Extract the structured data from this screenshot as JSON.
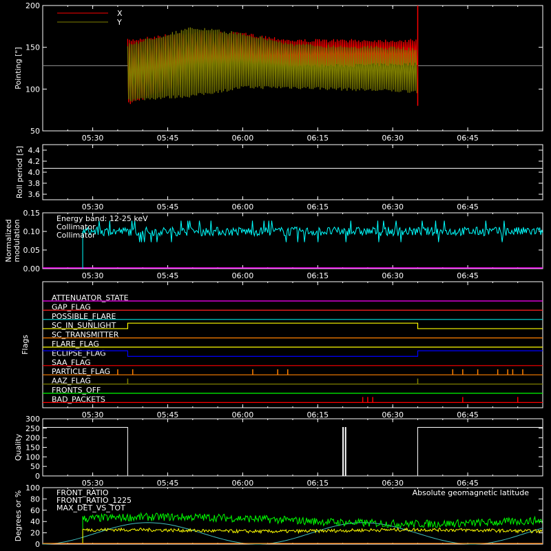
{
  "chart_data": [
    {
      "type": "line",
      "ylabel": "Pointing [\"]",
      "ylim": [
        50,
        200
      ],
      "yticks": [
        "50",
        "100",
        "150",
        "200"
      ],
      "xlim": [
        "05:20",
        "07:00"
      ],
      "xticks": [
        "05:30",
        "05:45",
        "06:00",
        "06:15",
        "06:30",
        "06:45"
      ],
      "series": [
        {
          "name": "X",
          "color": "#ff0000",
          "baseline": 128,
          "active_range": [
            "05:37",
            "06:35"
          ],
          "envelope": [
            [
              "05:37",
              80,
              160
            ],
            [
              "05:50",
              110,
              170
            ],
            [
              "06:00",
              115,
              168
            ],
            [
              "06:10",
              125,
              160
            ],
            [
              "06:35",
              128,
              160
            ]
          ]
        },
        {
          "name": "Y",
          "color": "#808000",
          "baseline": 128,
          "active_range": [
            "05:37",
            "06:35"
          ],
          "envelope": [
            [
              "05:37",
              85,
              155
            ],
            [
              "05:50",
              90,
              175
            ],
            [
              "06:00",
              100,
              168
            ],
            [
              "06:10",
              100,
              155
            ],
            [
              "06:35",
              95,
              150
            ]
          ]
        }
      ]
    },
    {
      "type": "line",
      "ylabel": "Roll period [s]",
      "ylim": [
        3.5,
        4.5
      ],
      "yticks": [
        "3.6",
        "3.8",
        "4.0",
        "4.2",
        "4.4"
      ],
      "xticks": [
        "05:30",
        "05:45",
        "06:00",
        "06:15",
        "06:30",
        "06:45"
      ],
      "series": [
        {
          "color": "#ffffff",
          "constant": 4.07
        }
      ]
    },
    {
      "type": "line",
      "ylabel": "Normalized modulation",
      "ylim": [
        0,
        0.15
      ],
      "yticks": [
        "0.00",
        "0.05",
        "0.10",
        "0.15"
      ],
      "xticks": [
        "05:30",
        "05:45",
        "06:00",
        "06:15",
        "06:30",
        "06:45"
      ],
      "annotation": "Energy band: 12-25 keV",
      "series": [
        {
          "name": "Collimator",
          "color": "#00ffff",
          "mean": 0.1,
          "spread": 0.012,
          "start": "05:28"
        },
        {
          "name": "Collimator",
          "color": "#ff00ff",
          "constant": 0.0
        }
      ]
    },
    {
      "type": "table",
      "ylabel": "Flags",
      "xticks": [
        "05:30",
        "05:45",
        "06:00",
        "06:15",
        "06:30",
        "06:45"
      ],
      "flags": [
        {
          "name": "ATTENUATOR_STATE",
          "color": "#ff00ff",
          "pulses": []
        },
        {
          "name": "GAP_FLAG",
          "color": "#ff2020",
          "pulses": []
        },
        {
          "name": "POSSIBLE_FLARE",
          "color": "#00e0e0",
          "pulses": []
        },
        {
          "name": "SC_IN_SUNLIGHT",
          "color": "#ffff00",
          "high_range": [
            "05:37",
            "06:35"
          ]
        },
        {
          "name": "SC_TRANSMITTER",
          "color": "#ff8000",
          "pulses": []
        },
        {
          "name": "FLARE_FLAG",
          "color": "#ffff00",
          "pulses": []
        },
        {
          "name": "ECLIPSE_FLAG",
          "color": "#0000ff",
          "high_ranges": [
            [
              "05:20",
              "05:37"
            ],
            [
              "06:35",
              "07:00"
            ]
          ]
        },
        {
          "name": "SAA_FLAG",
          "color": "#ff0000",
          "pulses": []
        },
        {
          "name": "PARTICLE_FLAG",
          "color": "#ff8000",
          "pulses": [
            "05:35",
            "05:38",
            "06:02",
            "06:07",
            "06:09",
            "06:42",
            "06:44",
            "06:47",
            "06:51",
            "06:53",
            "06:54",
            "06:56"
          ]
        },
        {
          "name": "AAZ_FLAG",
          "color": "#808000",
          "pulses": [
            "05:37",
            "06:35"
          ]
        },
        {
          "name": "FRONTS_OFF",
          "color": "#00ff00",
          "pulses": []
        },
        {
          "name": "BAD_PACKETS",
          "color": "#ff0000",
          "pulses": [
            "06:24",
            "06:25",
            "06:26",
            "06:44",
            "06:55"
          ]
        }
      ]
    },
    {
      "type": "line",
      "ylabel": "Quality",
      "ylim": [
        0,
        300
      ],
      "yticks": [
        "0",
        "50",
        "100",
        "150",
        "200",
        "250",
        "300"
      ],
      "xticks": [
        "05:30",
        "05:45",
        "06:00",
        "06:15",
        "06:30",
        "06:45"
      ],
      "series": [
        {
          "color": "#ffffff",
          "high_value": 255,
          "high_ranges": [
            [
              "05:20",
              "05:37"
            ],
            [
              "06:35",
              "07:00"
            ]
          ],
          "spikes": [
            "06:20",
            "06:20.5"
          ]
        }
      ]
    },
    {
      "type": "line",
      "ylabel": "Degrees or %",
      "ylim": [
        0,
        100
      ],
      "yticks": [
        "0",
        "20",
        "40",
        "60",
        "80",
        "100"
      ],
      "xlim": [
        "05:20",
        "07:00"
      ],
      "annotation": "Absolute geomagnetic latitude",
      "series": [
        {
          "name": "FRONT_RATIO",
          "color": "#ffff00",
          "mean": 24,
          "spread": 3,
          "start": "05:28"
        },
        {
          "name": "FRONT_RATIO_1225",
          "color": "#00ff00",
          "mean": 42,
          "spread": 7,
          "start": "05:28"
        },
        {
          "name": "MAX_DET_VS_TOT",
          "color": "#ff8000",
          "constant": 0
        },
        {
          "name": "Absolute geomagnetic latitude",
          "color": "#40c0c0",
          "wave": {
            "min": 0,
            "max": 38,
            "troughs": [
              "05:20",
              "06:03",
              "06:46"
            ],
            "peaks": [
              "05:41",
              "06:24"
            ]
          }
        }
      ]
    }
  ]
}
